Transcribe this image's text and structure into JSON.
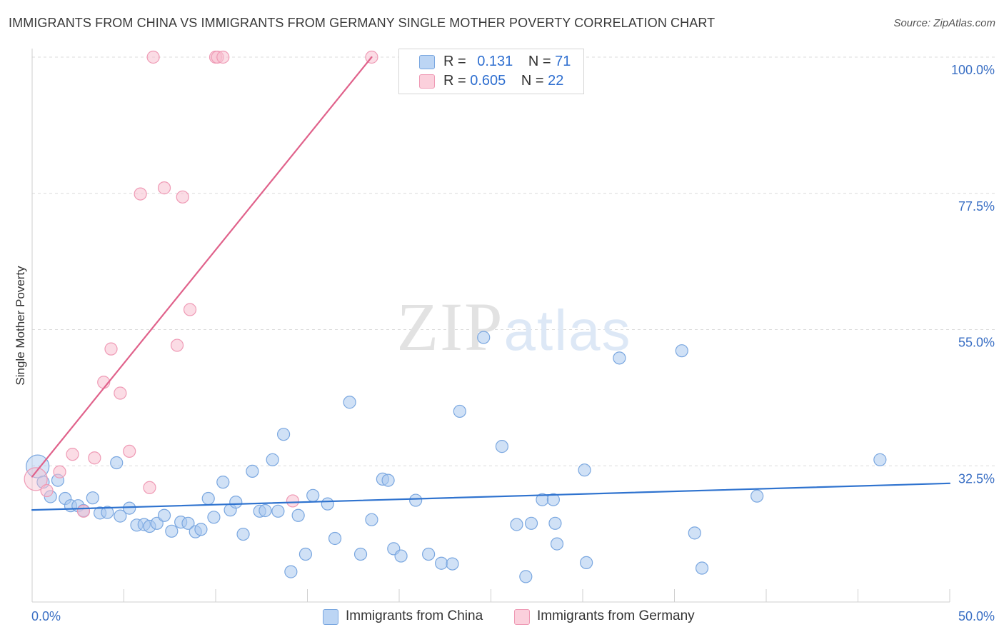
{
  "chart_data": {
    "type": "scatter",
    "title": "IMMIGRANTS FROM CHINA VS IMMIGRANTS FROM GERMANY SINGLE MOTHER POVERTY CORRELATION CHART",
    "source": "Source: ZipAtlas.com",
    "ylabel": "Single Mother Poverty",
    "xlabel": "",
    "xlim": [
      0,
      50
    ],
    "ylim": [
      10,
      100
    ],
    "x_tick_labels": {
      "min": "0.0%",
      "max": "50.0%"
    },
    "y_ticks": [
      {
        "value": 100,
        "label": "100.0%"
      },
      {
        "value": 77.5,
        "label": "77.5%"
      },
      {
        "value": 55,
        "label": "55.0%"
      },
      {
        "value": 32.5,
        "label": "32.5%"
      }
    ],
    "watermark": "ZIPatlas",
    "legend": {
      "rows": [
        {
          "r_label": "R = ",
          "r_value": "0.131",
          "n_label": "N = ",
          "n_value": "71"
        },
        {
          "r_label": "R = ",
          "r_value": "0.605",
          "n_label": "N = ",
          "n_value": "22"
        }
      ]
    },
    "series": [
      {
        "name": "Immigrants from China",
        "color": "#a9c8ef",
        "stroke": "#7aa7e0",
        "line_color": "#2f73cf",
        "trend": {
          "x": [
            0,
            50
          ],
          "y": [
            25.2,
            29.6
          ]
        },
        "points": [
          [
            0.3,
            32.4,
            "big"
          ],
          [
            0.6,
            29.8
          ],
          [
            1.0,
            27.4
          ],
          [
            1.4,
            30.1
          ],
          [
            1.8,
            27.1
          ],
          [
            2.1,
            25.9
          ],
          [
            2.5,
            25.9
          ],
          [
            2.8,
            25.1
          ],
          [
            3.3,
            27.2
          ],
          [
            3.7,
            24.7
          ],
          [
            4.1,
            24.8
          ],
          [
            4.6,
            33.0
          ],
          [
            4.8,
            24.2
          ],
          [
            5.3,
            25.5
          ],
          [
            5.7,
            22.7
          ],
          [
            6.1,
            22.8
          ],
          [
            6.4,
            22.5
          ],
          [
            6.8,
            23.0
          ],
          [
            7.2,
            24.3
          ],
          [
            7.6,
            21.7
          ],
          [
            8.1,
            23.2
          ],
          [
            8.5,
            23.0
          ],
          [
            8.9,
            21.6
          ],
          [
            9.2,
            22.0
          ],
          [
            9.6,
            27.1
          ],
          [
            9.9,
            24.0
          ],
          [
            10.4,
            29.8
          ],
          [
            10.8,
            25.2
          ],
          [
            11.1,
            26.5
          ],
          [
            11.5,
            21.2
          ],
          [
            12.0,
            31.6
          ],
          [
            12.4,
            25.0
          ],
          [
            12.7,
            25.1
          ],
          [
            13.1,
            33.5
          ],
          [
            13.4,
            25.0
          ],
          [
            13.7,
            37.7
          ],
          [
            14.1,
            15.0
          ],
          [
            14.5,
            24.3
          ],
          [
            14.9,
            17.9
          ],
          [
            15.3,
            27.6
          ],
          [
            16.1,
            26.2
          ],
          [
            16.5,
            20.5
          ],
          [
            17.3,
            43.0
          ],
          [
            17.9,
            17.9
          ],
          [
            18.5,
            23.6
          ],
          [
            19.1,
            30.3
          ],
          [
            19.4,
            30.1
          ],
          [
            19.7,
            18.8
          ],
          [
            20.1,
            17.6
          ],
          [
            20.9,
            26.8
          ],
          [
            21.6,
            17.9
          ],
          [
            22.3,
            16.4
          ],
          [
            22.9,
            16.3
          ],
          [
            23.3,
            41.5
          ],
          [
            24.6,
            53.7
          ],
          [
            25.6,
            35.7
          ],
          [
            26.4,
            22.8
          ],
          [
            26.9,
            14.2
          ],
          [
            27.2,
            23.0
          ],
          [
            27.8,
            26.9
          ],
          [
            28.4,
            26.9
          ],
          [
            28.5,
            23.0
          ],
          [
            28.6,
            19.6
          ],
          [
            30.1,
            31.8
          ],
          [
            30.2,
            16.5
          ],
          [
            32.0,
            50.3
          ],
          [
            35.4,
            51.5
          ],
          [
            36.1,
            21.4
          ],
          [
            36.5,
            15.6
          ],
          [
            39.5,
            27.5
          ],
          [
            46.2,
            33.5
          ]
        ]
      },
      {
        "name": "Immigrants from Germany",
        "color": "#f7c0d0",
        "stroke": "#ef9ab5",
        "line_color": "#e0628b",
        "trend": {
          "x": [
            0,
            18.5
          ],
          "y": [
            30.7,
            100
          ]
        },
        "points": [
          [
            0.2,
            30.3,
            "big"
          ],
          [
            0.8,
            28.4
          ],
          [
            1.5,
            31.5
          ],
          [
            2.2,
            34.4
          ],
          [
            2.8,
            25.0
          ],
          [
            3.4,
            33.8
          ],
          [
            3.9,
            46.3
          ],
          [
            4.3,
            51.8
          ],
          [
            4.8,
            44.5
          ],
          [
            5.3,
            34.9
          ],
          [
            5.9,
            77.4
          ],
          [
            6.4,
            28.9
          ],
          [
            6.6,
            100
          ],
          [
            7.2,
            78.4
          ],
          [
            7.9,
            52.4
          ],
          [
            8.2,
            76.9
          ],
          [
            8.6,
            58.3
          ],
          [
            10.0,
            100
          ],
          [
            10.1,
            100
          ],
          [
            10.4,
            100
          ],
          [
            14.2,
            26.7
          ],
          [
            18.5,
            100
          ]
        ]
      }
    ]
  }
}
